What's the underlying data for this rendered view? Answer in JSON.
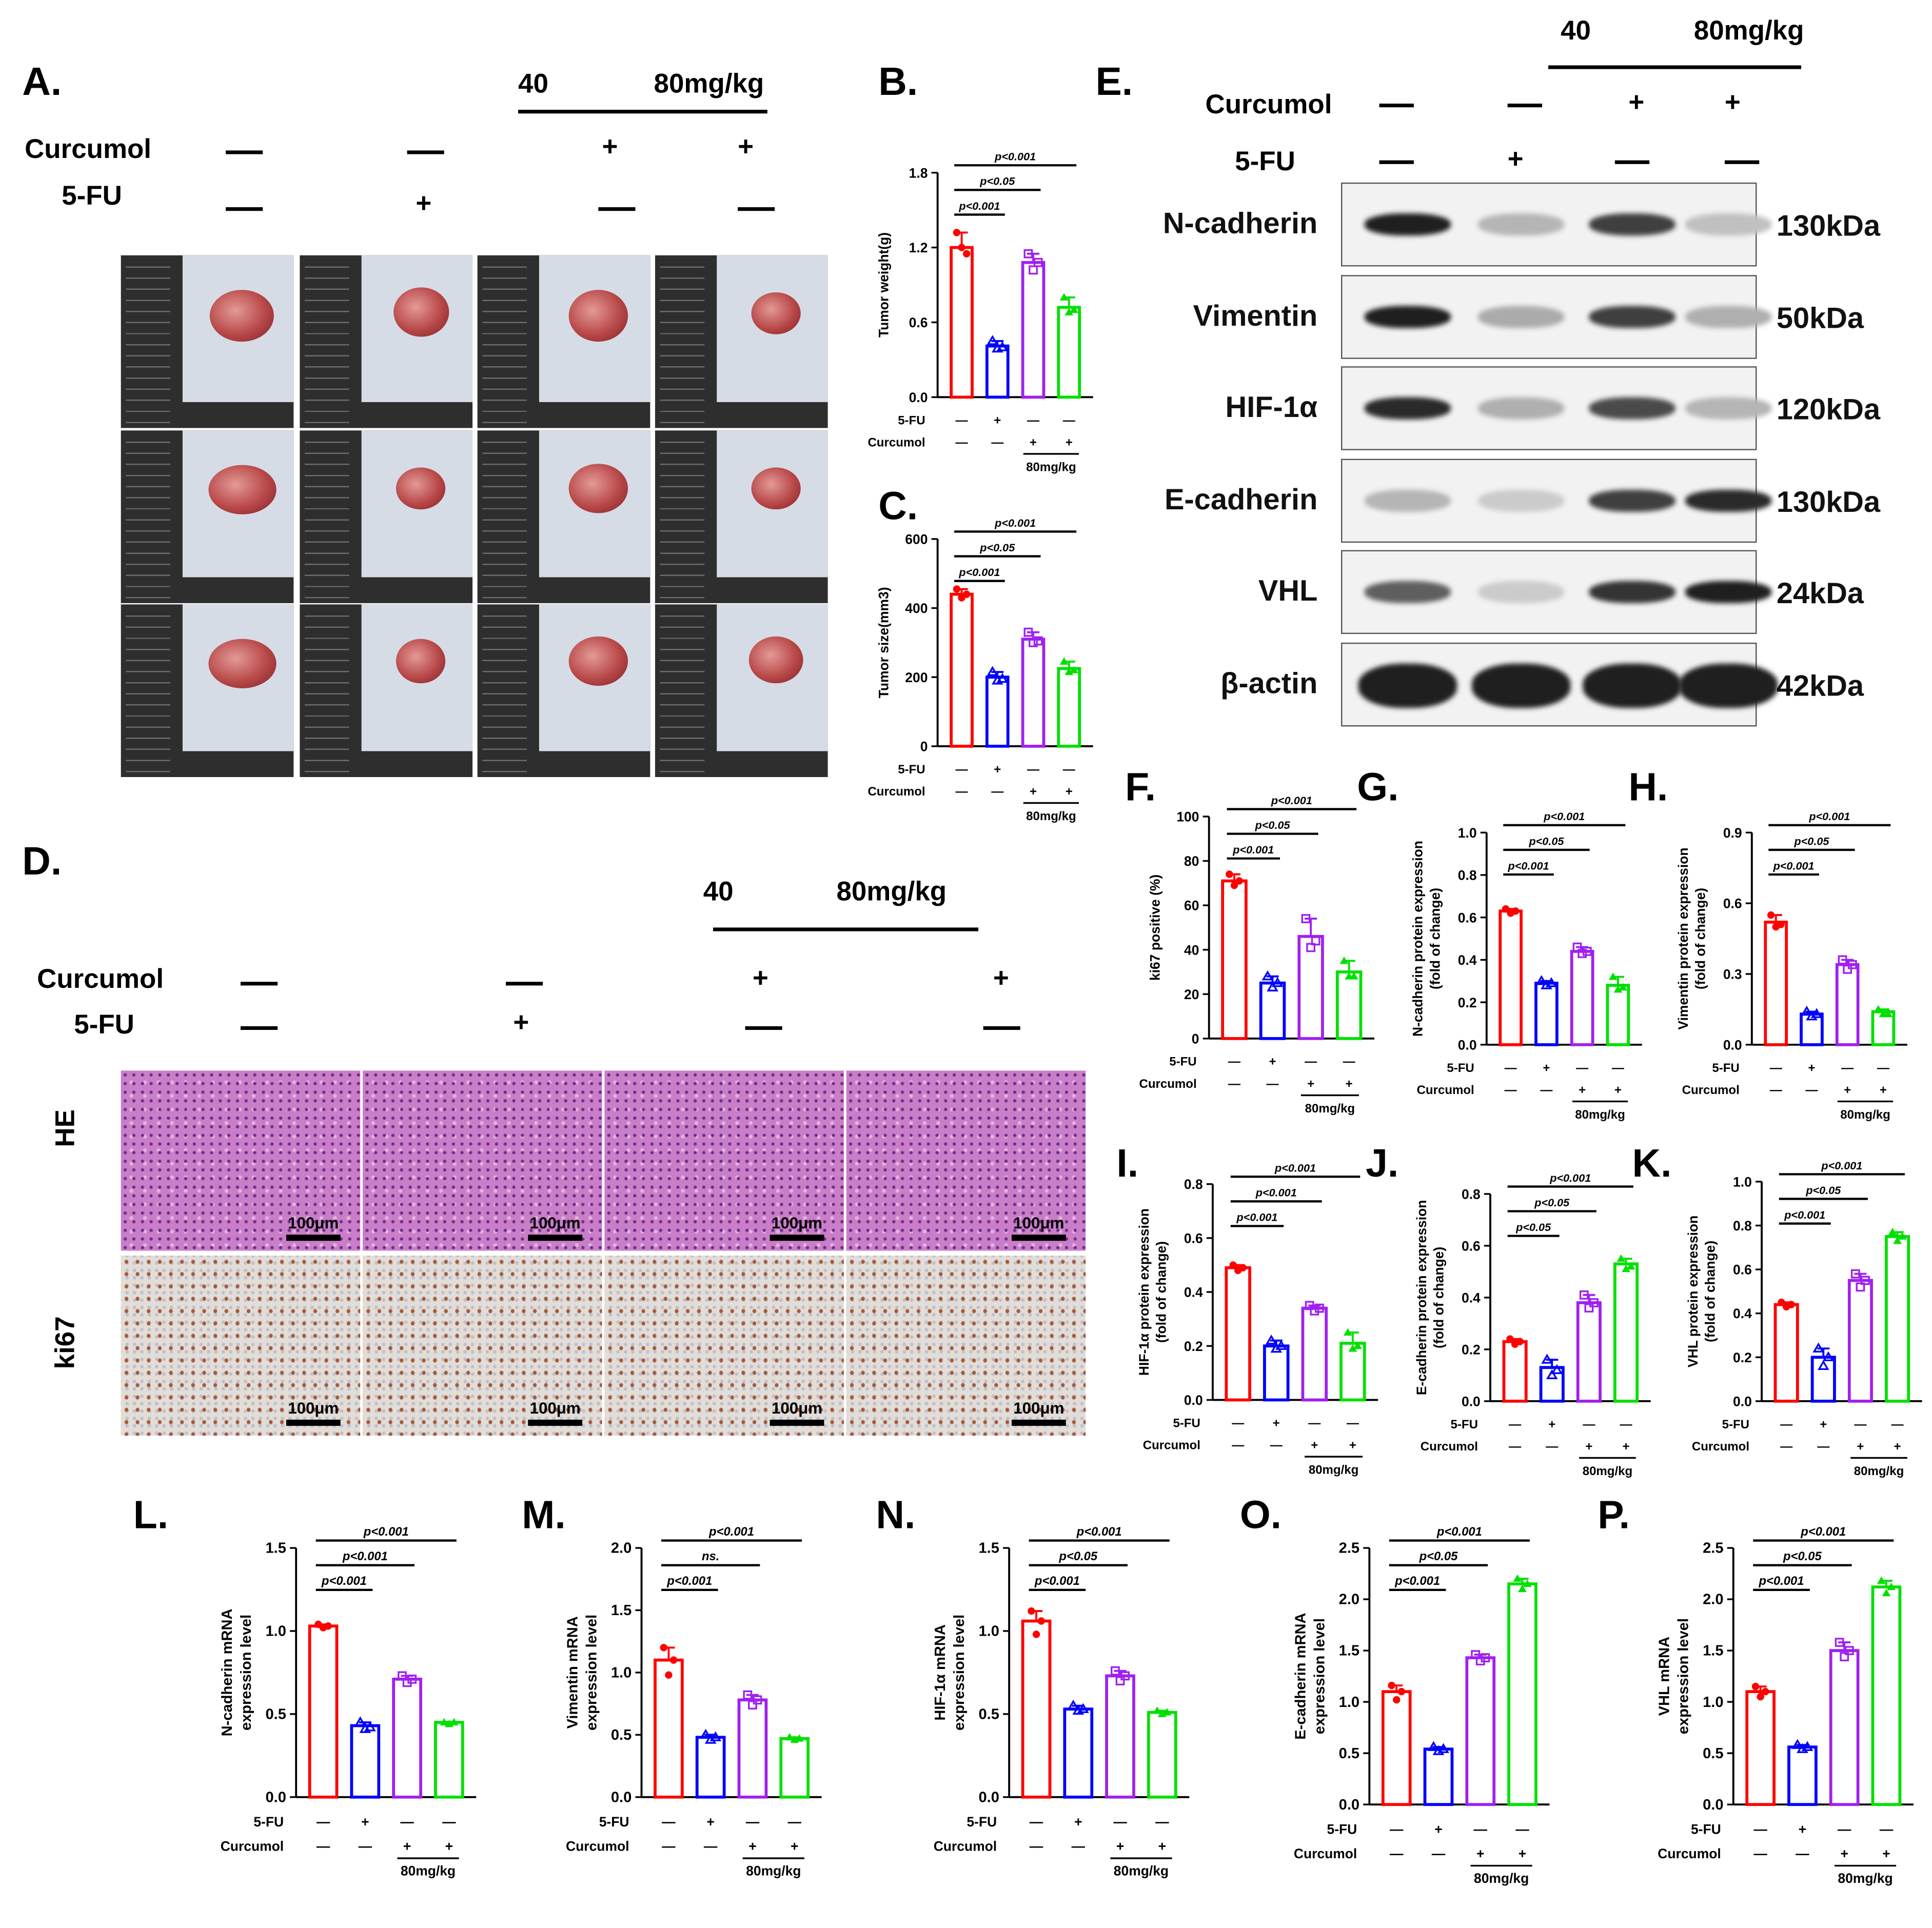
{
  "panel_labels": [
    "A.",
    "B.",
    "C.",
    "D.",
    "E.",
    "F.",
    "G.",
    "H.",
    "I.",
    "J.",
    "K.",
    "L.",
    "M.",
    "N.",
    "O.",
    "P."
  ],
  "treatment": {
    "curcumol": "Curcumol",
    "fu": "5-FU",
    "dose_low": "40",
    "dose_high": "80mg/kg",
    "plus": "+",
    "minus": "—"
  },
  "tissue": {
    "he_label": "HE",
    "ki67_label": "ki67",
    "scale_bar": "100μm"
  },
  "western_blot": {
    "rows": [
      {
        "protein": "N-cadherin",
        "mw": "130kDa",
        "intensity": [
          0.95,
          0.25,
          0.8,
          0.2
        ]
      },
      {
        "protein": "Vimentin",
        "mw": "50kDa",
        "intensity": [
          0.95,
          0.3,
          0.8,
          0.28
        ]
      },
      {
        "protein": "HIF-1α",
        "mw": "120kDa",
        "intensity": [
          0.9,
          0.28,
          0.75,
          0.25
        ]
      },
      {
        "protein": "E-cadherin",
        "mw": "130kDa",
        "intensity": [
          0.25,
          0.15,
          0.8,
          0.9
        ]
      },
      {
        "protein": "VHL",
        "mw": "24kDa",
        "intensity": [
          0.65,
          0.15,
          0.85,
          0.95
        ]
      },
      {
        "protein": "β-actin",
        "mw": "42kDa",
        "intensity": [
          0.95,
          0.95,
          0.95,
          0.95
        ]
      }
    ]
  },
  "colors": {
    "control": "#ff0000",
    "fu": "#0000ff",
    "cur40": "#a020f0",
    "cur80": "#00e000"
  },
  "chart_data": [
    {
      "panel": "B",
      "type": "bar",
      "ylabel": "Tumor weight(g)",
      "ylim": [
        0,
        1.8
      ],
      "ticks": [
        "0.0",
        "0.6",
        "1.2",
        "1.8"
      ],
      "values": [
        1.2,
        0.41,
        1.08,
        0.72
      ],
      "points": [
        [
          1.32,
          1.2,
          1.15
        ],
        [
          0.45,
          0.39,
          0.4
        ],
        [
          1.15,
          1.02,
          1.08
        ],
        [
          0.8,
          0.68,
          0.7
        ]
      ],
      "sig": [
        "p<0.001",
        "p<0.05",
        "p<0.001"
      ]
    },
    {
      "panel": "C",
      "type": "bar",
      "ylabel": "Tumor size(mm3)",
      "ylim": [
        0,
        600
      ],
      "ticks": [
        "0",
        "200",
        "400",
        "600"
      ],
      "values": [
        440,
        200,
        310,
        225
      ],
      "points": [
        [
          455,
          430,
          440
        ],
        [
          215,
          190,
          195
        ],
        [
          330,
          300,
          305
        ],
        [
          245,
          215,
          220
        ]
      ],
      "sig": [
        "p<0.001",
        "p<0.05",
        "p<0.001"
      ]
    },
    {
      "panel": "F",
      "type": "bar",
      "ylabel": "ki67 positive (%)",
      "ylim": [
        0,
        100
      ],
      "ticks": [
        "0",
        "20",
        "40",
        "60",
        "80",
        "100"
      ],
      "values": [
        71,
        25,
        46,
        30
      ],
      "points": [
        [
          74,
          69,
          71
        ],
        [
          28,
          23,
          25
        ],
        [
          54,
          41,
          44
        ],
        [
          35,
          28,
          28
        ]
      ],
      "sig": [
        "p<0.001",
        "p<0.05",
        "p<0.001"
      ]
    },
    {
      "panel": "G",
      "type": "bar",
      "ylabel": "N-cadherin protein expression",
      "ylabel2": "(fold of change)",
      "ylim": [
        0,
        1.0
      ],
      "ticks": [
        "0.0",
        "0.2",
        "0.4",
        "0.6",
        "0.8",
        "1.0"
      ],
      "values": [
        0.63,
        0.29,
        0.44,
        0.28
      ],
      "points": [
        [
          0.64,
          0.62,
          0.63
        ],
        [
          0.3,
          0.28,
          0.29
        ],
        [
          0.46,
          0.43,
          0.44
        ],
        [
          0.32,
          0.26,
          0.27
        ]
      ],
      "sig": [
        "p<0.001",
        "p<0.05",
        "p<0.001"
      ]
    },
    {
      "panel": "H",
      "type": "bar",
      "ylabel": "Vimentin protein expression",
      "ylabel2": "(fold of change)",
      "ylim": [
        0,
        0.9
      ],
      "ticks": [
        "0.0",
        "0.3",
        "0.6",
        "0.9"
      ],
      "values": [
        0.52,
        0.13,
        0.34,
        0.14
      ],
      "points": [
        [
          0.55,
          0.5,
          0.51
        ],
        [
          0.14,
          0.12,
          0.13
        ],
        [
          0.36,
          0.32,
          0.34
        ],
        [
          0.15,
          0.13,
          0.13
        ]
      ],
      "sig": [
        "p<0.001",
        "p<0.05",
        "p<0.001"
      ]
    },
    {
      "panel": "I",
      "type": "bar",
      "ylabel": "HIF-1α protein expression",
      "ylabel2": "(fold of change)",
      "ylim": [
        0,
        0.8
      ],
      "ticks": [
        "0.0",
        "0.2",
        "0.4",
        "0.6",
        "0.8"
      ],
      "values": [
        0.49,
        0.2,
        0.34,
        0.21
      ],
      "points": [
        [
          0.5,
          0.48,
          0.49
        ],
        [
          0.22,
          0.19,
          0.2
        ],
        [
          0.35,
          0.33,
          0.34
        ],
        [
          0.25,
          0.19,
          0.2
        ]
      ],
      "sig": [
        "p<0.001",
        "p<0.001",
        "p<0.001"
      ]
    },
    {
      "panel": "J",
      "type": "bar",
      "ylabel": "E-cadherin protein expression",
      "ylabel2": "(fold of change)",
      "ylim": [
        0,
        0.8
      ],
      "ticks": [
        "0.0",
        "0.2",
        "0.4",
        "0.6",
        "0.8"
      ],
      "values": [
        0.23,
        0.13,
        0.38,
        0.53
      ],
      "points": [
        [
          0.24,
          0.22,
          0.23
        ],
        [
          0.16,
          0.1,
          0.12
        ],
        [
          0.41,
          0.36,
          0.38
        ],
        [
          0.55,
          0.51,
          0.52
        ]
      ],
      "sig": [
        "p<0.05",
        "p<0.05",
        "p<0.001"
      ]
    },
    {
      "panel": "K",
      "type": "bar",
      "ylabel": "VHL protein expression",
      "ylabel2": "(fold of change)",
      "ylim": [
        0,
        1.0
      ],
      "ticks": [
        "0.0",
        "0.2",
        "0.4",
        "0.6",
        "0.8",
        "1.0"
      ],
      "values": [
        0.44,
        0.2,
        0.55,
        0.75
      ],
      "points": [
        [
          0.45,
          0.43,
          0.44
        ],
        [
          0.24,
          0.16,
          0.2
        ],
        [
          0.58,
          0.52,
          0.55
        ],
        [
          0.77,
          0.73,
          0.75
        ]
      ],
      "sig": [
        "p<0.001",
        "p<0.05",
        "p<0.001"
      ]
    },
    {
      "panel": "L",
      "type": "bar",
      "ylabel": "N-cadherin mRNA",
      "ylabel2": "expression level",
      "ylim": [
        0,
        1.5
      ],
      "ticks": [
        "0.0",
        "0.5",
        "1.0",
        "1.5"
      ],
      "values": [
        1.03,
        0.43,
        0.71,
        0.45
      ],
      "points": [
        [
          1.04,
          1.02,
          1.03
        ],
        [
          0.45,
          0.41,
          0.42
        ],
        [
          0.73,
          0.69,
          0.71
        ],
        [
          0.45,
          0.44,
          0.45
        ]
      ],
      "sig": [
        "p<0.001",
        "p<0.001",
        "p<0.001"
      ]
    },
    {
      "panel": "M",
      "type": "bar",
      "ylabel": "Vimentin mRNA",
      "ylabel2": "expression level",
      "ylim": [
        0,
        2.0
      ],
      "ticks": [
        "0.0",
        "0.5",
        "1.0",
        "1.5",
        "2.0"
      ],
      "values": [
        1.1,
        0.48,
        0.78,
        0.47
      ],
      "points": [
        [
          1.2,
          0.98,
          1.1
        ],
        [
          0.5,
          0.46,
          0.48
        ],
        [
          0.82,
          0.74,
          0.78
        ],
        [
          0.48,
          0.46,
          0.47
        ]
      ],
      "sig": [
        "p<0.001",
        "ns.",
        "p<0.001"
      ]
    },
    {
      "panel": "N",
      "type": "bar",
      "ylabel": "HIF-1α mRNA",
      "ylabel2": "expression level",
      "ylim": [
        0,
        1.5
      ],
      "ticks": [
        "0.0",
        "0.5",
        "1.0",
        "1.5"
      ],
      "values": [
        1.06,
        0.53,
        0.73,
        0.51
      ],
      "points": [
        [
          1.12,
          0.98,
          1.06
        ],
        [
          0.55,
          0.52,
          0.53
        ],
        [
          0.76,
          0.7,
          0.73
        ],
        [
          0.52,
          0.5,
          0.51
        ]
      ],
      "sig": [
        "p<0.001",
        "p<0.05",
        "p<0.001"
      ]
    },
    {
      "panel": "O",
      "type": "bar",
      "ylabel": "E-cadherin mRNA",
      "ylabel2": "expression level",
      "ylim": [
        0,
        2.5
      ],
      "ticks": [
        "0.0",
        "0.5",
        "1.0",
        "1.5",
        "2.0",
        "2.5"
      ],
      "values": [
        1.1,
        0.54,
        1.43,
        2.15
      ],
      "points": [
        [
          1.16,
          1.02,
          1.1
        ],
        [
          0.56,
          0.52,
          0.54
        ],
        [
          1.46,
          1.4,
          1.43
        ],
        [
          2.2,
          2.1,
          2.15
        ]
      ],
      "sig": [
        "p<0.001",
        "p<0.05",
        "p<0.001"
      ]
    },
    {
      "panel": "P",
      "type": "bar",
      "ylabel": "VHL mRNA",
      "ylabel2": "expression level",
      "ylim": [
        0,
        2.5
      ],
      "ticks": [
        "0.0",
        "0.5",
        "1.0",
        "1.5",
        "2.0",
        "2.5"
      ],
      "values": [
        1.1,
        0.56,
        1.5,
        2.12
      ],
      "points": [
        [
          1.15,
          1.05,
          1.1
        ],
        [
          0.58,
          0.54,
          0.56
        ],
        [
          1.58,
          1.44,
          1.5
        ],
        [
          2.18,
          2.06,
          2.12
        ]
      ],
      "sig": [
        "p<0.001",
        "p<0.05",
        "p<0.001"
      ]
    }
  ],
  "x_rows": {
    "fu": [
      "—",
      "+",
      "—",
      "—"
    ],
    "curcumol": [
      "—",
      "—",
      "+",
      "+"
    ],
    "dose": "80mg/kg"
  }
}
